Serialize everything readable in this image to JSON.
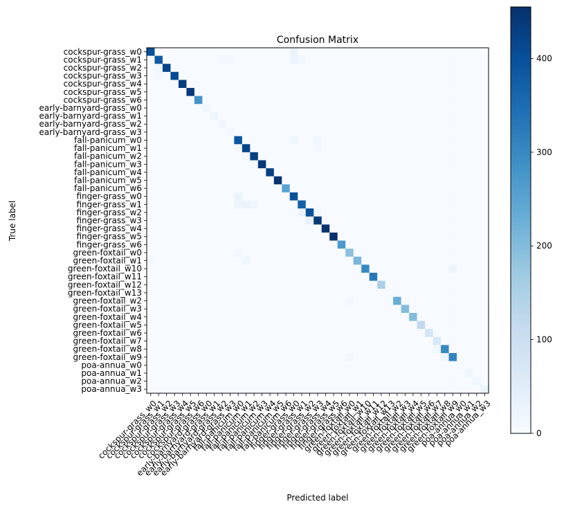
{
  "chart_data": {
    "type": "heatmap",
    "title": "Confusion Matrix",
    "xlabel": "Predicted label",
    "ylabel": "True label",
    "labels": [
      "cockspur-grass_w0",
      "cockspur-grass_w1",
      "cockspur-grass_w2",
      "cockspur-grass_w3",
      "cockspur-grass_w4",
      "cockspur-grass_w5",
      "cockspur-grass_w6",
      "early-barnyard-grass_w0",
      "early-barnyard-grass_w1",
      "early-barnyard-grass_w2",
      "early-barnyard-grass_w3",
      "fall-panicum_w0",
      "fall-panicum_w1",
      "fall-panicum_w2",
      "fall-panicum_w3",
      "fall-panicum_w4",
      "fall-panicum_w5",
      "fall-panicum_w6",
      "finger-grass_w0",
      "finger-grass_w1",
      "finger-grass_w2",
      "finger-grass_w3",
      "finger-grass_w4",
      "finger-grass_w5",
      "finger-grass_w6",
      "green-foxtail_w0",
      "green-foxtail_w1",
      "green-foxtail_w10",
      "green-foxtail_w11",
      "green-foxtail_w12",
      "green-foxtail_w13",
      "green-foxtail_w2",
      "green-foxtail_w3",
      "green-foxtail_w4",
      "green-foxtail_w5",
      "green-foxtail_w6",
      "green-foxtail_w7",
      "green-foxtail_w8",
      "green-foxtail_w9",
      "poa-annua_w0",
      "poa-annua_w1",
      "poa-annua_w2",
      "poa-annua_w3"
    ],
    "diagonal": [
      400,
      380,
      420,
      410,
      430,
      440,
      280,
      15,
      20,
      18,
      12,
      390,
      420,
      430,
      440,
      430,
      450,
      250,
      400,
      370,
      400,
      440,
      450,
      455,
      270,
      190,
      210,
      300,
      330,
      150,
      5,
      230,
      200,
      200,
      120,
      80,
      70,
      300,
      310,
      8,
      20,
      18,
      25
    ],
    "off_diagonal": [
      {
        "row": 0,
        "col": 18,
        "value": 25
      },
      {
        "row": 1,
        "col": 9,
        "value": 10
      },
      {
        "row": 1,
        "col": 10,
        "value": 12
      },
      {
        "row": 1,
        "col": 18,
        "value": 20
      },
      {
        "row": 1,
        "col": 19,
        "value": 15
      },
      {
        "row": 2,
        "col": 1,
        "value": 15
      },
      {
        "row": 3,
        "col": 1,
        "value": 10
      },
      {
        "row": 11,
        "col": 18,
        "value": 18
      },
      {
        "row": 11,
        "col": 21,
        "value": 15
      },
      {
        "row": 12,
        "col": 11,
        "value": 10
      },
      {
        "row": 12,
        "col": 21,
        "value": 12
      },
      {
        "row": 13,
        "col": 12,
        "value": 15
      },
      {
        "row": 14,
        "col": 13,
        "value": 12
      },
      {
        "row": 18,
        "col": 11,
        "value": 30
      },
      {
        "row": 19,
        "col": 11,
        "value": 20
      },
      {
        "row": 19,
        "col": 12,
        "value": 25
      },
      {
        "row": 19,
        "col": 13,
        "value": 20
      },
      {
        "row": 20,
        "col": 19,
        "value": 30
      },
      {
        "row": 20,
        "col": 21,
        "value": 15
      },
      {
        "row": 21,
        "col": 20,
        "value": 35
      },
      {
        "row": 25,
        "col": 11,
        "value": 15
      },
      {
        "row": 26,
        "col": 0,
        "value": 12
      },
      {
        "row": 26,
        "col": 12,
        "value": 18
      },
      {
        "row": 27,
        "col": 38,
        "value": 25
      },
      {
        "row": 31,
        "col": 25,
        "value": 12
      },
      {
        "row": 37,
        "col": 36,
        "value": 15
      },
      {
        "row": 38,
        "col": 25,
        "value": 15
      },
      {
        "row": 38,
        "col": 37,
        "value": 20
      }
    ],
    "colorbar": {
      "min": 0,
      "max": 455,
      "ticks": [
        0,
        100,
        200,
        300,
        400
      ],
      "colormap": "Blues",
      "color_low": "#f7fbff",
      "color_high": "#08306b"
    }
  }
}
